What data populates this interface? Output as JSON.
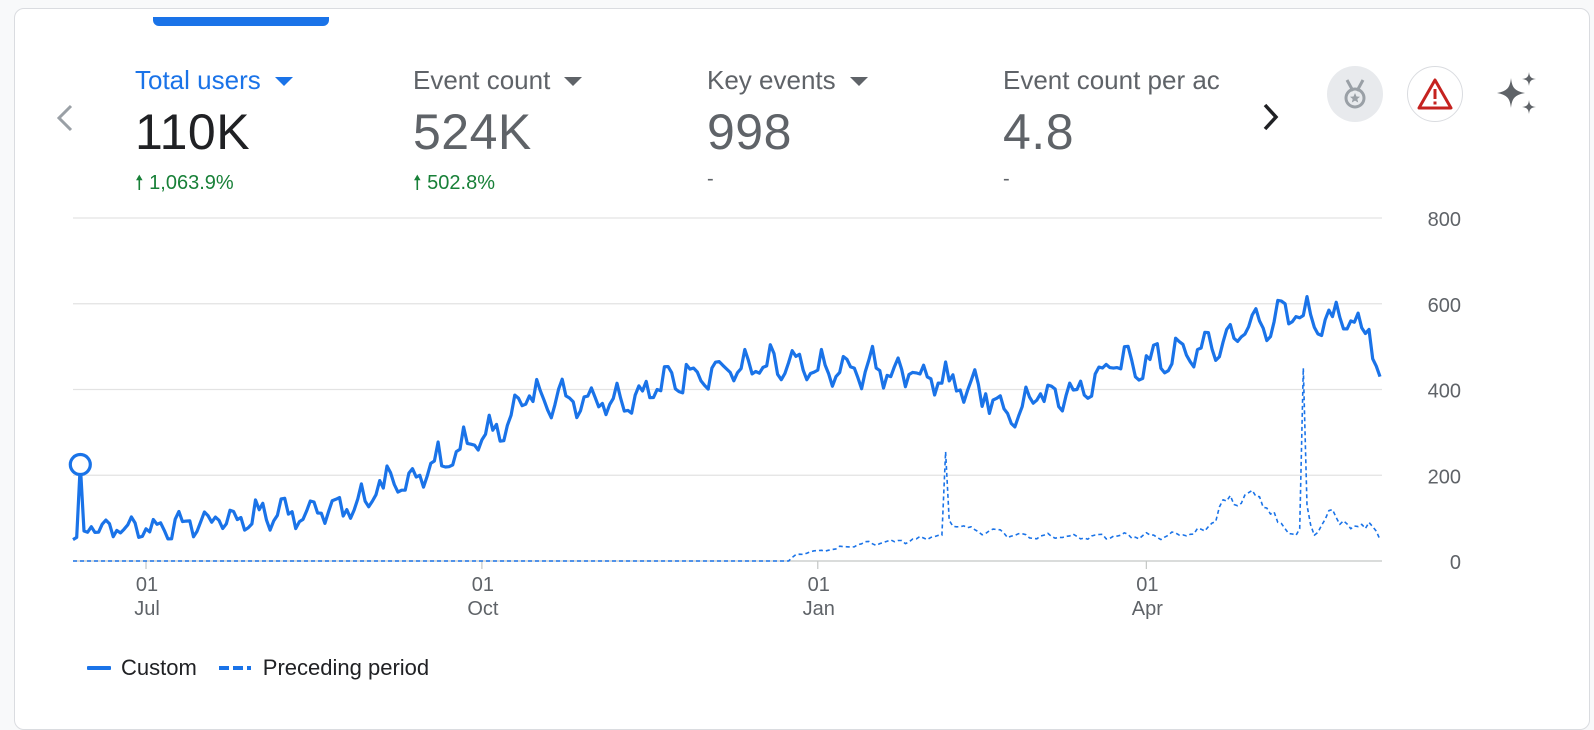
{
  "metrics": [
    {
      "label": "Total users",
      "value": "110K",
      "change": "1,063.9%",
      "direction": "up"
    },
    {
      "label": "Event count",
      "value": "524K",
      "change": "502.8%",
      "direction": "up"
    },
    {
      "label": "Key events",
      "value": "998",
      "change": "-",
      "direction": "none"
    },
    {
      "label": "Event count per ac",
      "value": "4.8",
      "change": "-",
      "direction": "none"
    }
  ],
  "icons": {
    "prev": "chevron-left-icon",
    "next": "chevron-right-icon",
    "medal": "medal-icon",
    "warning": "warning-icon",
    "sparkle": "sparkle-icon"
  },
  "colors": {
    "accent": "#1a73e8",
    "positive": "#188038",
    "warning": "#c5221f"
  },
  "legend": {
    "custom": "Custom",
    "preceding": "Preceding period"
  },
  "chart_data": {
    "type": "line",
    "title": "",
    "xlabel": "",
    "ylabel": "",
    "ylim": [
      0,
      800
    ],
    "yticks": [
      "800",
      "600",
      "400",
      "200",
      "0"
    ],
    "xticks": [
      {
        "day": "01",
        "month": "Jul",
        "index": 20
      },
      {
        "day": "01",
        "month": "Oct",
        "index": 112
      },
      {
        "day": "01",
        "month": "Jan",
        "index": 204
      },
      {
        "day": "01",
        "month": "Apr",
        "index": 294
      }
    ],
    "highlight": {
      "series": "Custom",
      "index": 2,
      "value": 225
    },
    "series": [
      {
        "name": "Custom",
        "style": "solid",
        "keypoints": [
          [
            0,
            50
          ],
          [
            1,
            55
          ],
          [
            2,
            225
          ],
          [
            3,
            70
          ],
          [
            5,
            80
          ],
          [
            20,
            75
          ],
          [
            40,
            95
          ],
          [
            60,
            115
          ],
          [
            75,
            120
          ],
          [
            85,
            170
          ],
          [
            95,
            200
          ],
          [
            105,
            255
          ],
          [
            110,
            270
          ],
          [
            115,
            305
          ],
          [
            120,
            340
          ],
          [
            125,
            385
          ],
          [
            135,
            385
          ],
          [
            150,
            380
          ],
          [
            160,
            400
          ],
          [
            170,
            450
          ],
          [
            180,
            440
          ],
          [
            190,
            455
          ],
          [
            200,
            445
          ],
          [
            210,
            440
          ],
          [
            220,
            450
          ],
          [
            230,
            440
          ],
          [
            240,
            420
          ],
          [
            250,
            390
          ],
          [
            255,
            355
          ],
          [
            260,
            360
          ],
          [
            265,
            390
          ],
          [
            275,
            400
          ],
          [
            285,
            450
          ],
          [
            295,
            470
          ],
          [
            305,
            480
          ],
          [
            315,
            510
          ],
          [
            325,
            560
          ],
          [
            335,
            570
          ],
          [
            345,
            570
          ],
          [
            350,
            560
          ],
          [
            355,
            540
          ],
          [
            358,
            430
          ]
        ],
        "amplitude": 48
      },
      {
        "name": "Preceding period",
        "style": "dashed",
        "keypoints": [
          [
            0,
            0
          ],
          [
            196,
            0
          ],
          [
            198,
            15
          ],
          [
            205,
            25
          ],
          [
            215,
            38
          ],
          [
            225,
            45
          ],
          [
            235,
            55
          ],
          [
            238,
            60
          ],
          [
            239,
            255
          ],
          [
            240,
            95
          ],
          [
            243,
            80
          ],
          [
            255,
            65
          ],
          [
            270,
            55
          ],
          [
            285,
            58
          ],
          [
            300,
            60
          ],
          [
            310,
            70
          ],
          [
            316,
            140
          ],
          [
            325,
            150
          ],
          [
            330,
            90
          ],
          [
            335,
            60
          ],
          [
            336,
            75
          ],
          [
            337,
            450
          ],
          [
            338,
            130
          ],
          [
            340,
            60
          ],
          [
            345,
            120
          ],
          [
            350,
            75
          ],
          [
            355,
            90
          ],
          [
            358,
            50
          ]
        ],
        "amplitude": 18
      }
    ]
  }
}
